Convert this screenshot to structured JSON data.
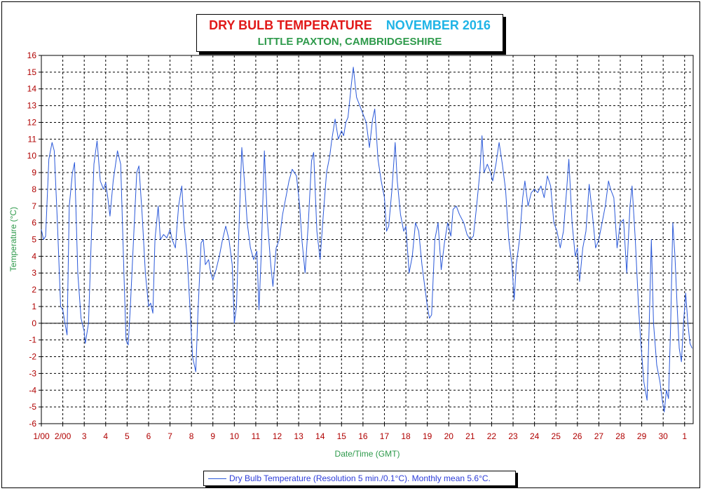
{
  "title": {
    "main": "DRY BULB TEMPERATURE",
    "month": "NOVEMBER 2016",
    "location": "LITTLE PAXTON, CAMBRIDGESHIRE"
  },
  "colors": {
    "title_main": "#e11919",
    "title_month": "#1fb4e6",
    "subtitle": "#2e9a4b",
    "series": "#2b59d9",
    "tick_labels": "#b00000",
    "axis_labels": "#2e9a4b"
  },
  "legend": {
    "text": "Dry Bulb Temperature (Resolution 5 min./0.1°C). Monthly mean 5.6°C."
  },
  "chart_data": {
    "type": "line",
    "title": "DRY BULB TEMPERATURE NOVEMBER 2016",
    "subtitle": "LITTLE PAXTON, CAMBRIDGESHIRE",
    "xlabel": "Date/Time (GMT)",
    "ylabel": "Temperature (°C)",
    "ylim": [
      -6,
      16
    ],
    "xlim": [
      1,
      31.4
    ],
    "grid": true,
    "legend_position": "bottom",
    "y_ticks": [
      "-6",
      "-5",
      "-4",
      "-3",
      "-2",
      "-1",
      "0",
      "1",
      "2",
      "3",
      "4",
      "5",
      "6",
      "7",
      "8",
      "9",
      "10",
      "11",
      "12",
      "13",
      "14",
      "15",
      "16"
    ],
    "x_ticks": [
      {
        "x": 1,
        "label": "1/00"
      },
      {
        "x": 2,
        "label": "2/00"
      },
      {
        "x": 3,
        "label": "3"
      },
      {
        "x": 4,
        "label": "4"
      },
      {
        "x": 5,
        "label": "5"
      },
      {
        "x": 6,
        "label": "6"
      },
      {
        "x": 7,
        "label": "7"
      },
      {
        "x": 8,
        "label": "8"
      },
      {
        "x": 9,
        "label": "9"
      },
      {
        "x": 10,
        "label": "10"
      },
      {
        "x": 11,
        "label": "11"
      },
      {
        "x": 12,
        "label": "12"
      },
      {
        "x": 13,
        "label": "13"
      },
      {
        "x": 14,
        "label": "14"
      },
      {
        "x": 15,
        "label": "15"
      },
      {
        "x": 16,
        "label": "16"
      },
      {
        "x": 17,
        "label": "17"
      },
      {
        "x": 18,
        "label": "18"
      },
      {
        "x": 19,
        "label": "19"
      },
      {
        "x": 20,
        "label": "20"
      },
      {
        "x": 21,
        "label": "21"
      },
      {
        "x": 22,
        "label": "22"
      },
      {
        "x": 23,
        "label": "23"
      },
      {
        "x": 24,
        "label": "24"
      },
      {
        "x": 25,
        "label": "25"
      },
      {
        "x": 26,
        "label": "26"
      },
      {
        "x": 27,
        "label": "27"
      },
      {
        "x": 28,
        "label": "28"
      },
      {
        "x": 29,
        "label": "29"
      },
      {
        "x": 30,
        "label": "30"
      },
      {
        "x": 31,
        "label": "1"
      }
    ],
    "series": [
      {
        "name": "Dry Bulb Temperature (Resolution 5 min./0.1°C). Monthly mean 5.6°C.",
        "points": [
          [
            1.0,
            5.6
          ],
          [
            1.1,
            5.0
          ],
          [
            1.2,
            5.2
          ],
          [
            1.35,
            9.8
          ],
          [
            1.5,
            10.8
          ],
          [
            1.6,
            10.3
          ],
          [
            1.75,
            6.0
          ],
          [
            1.9,
            1.0
          ],
          [
            2.0,
            0.8
          ],
          [
            2.1,
            0.0
          ],
          [
            2.2,
            -0.7
          ],
          [
            2.3,
            7.0
          ],
          [
            2.45,
            9.0
          ],
          [
            2.55,
            9.6
          ],
          [
            2.7,
            3.0
          ],
          [
            2.85,
            0.3
          ],
          [
            3.0,
            -0.5
          ],
          [
            3.05,
            -1.2
          ],
          [
            3.2,
            0.0
          ],
          [
            3.3,
            4.0
          ],
          [
            3.45,
            9.5
          ],
          [
            3.6,
            10.9
          ],
          [
            3.75,
            8.5
          ],
          [
            3.9,
            8.0
          ],
          [
            4.0,
            8.4
          ],
          [
            4.1,
            7.5
          ],
          [
            4.2,
            6.4
          ],
          [
            4.35,
            8.5
          ],
          [
            4.55,
            10.3
          ],
          [
            4.7,
            9.5
          ],
          [
            4.85,
            3.0
          ],
          [
            4.95,
            -1.0
          ],
          [
            5.05,
            -1.3
          ],
          [
            5.15,
            1.0
          ],
          [
            5.3,
            5.0
          ],
          [
            5.45,
            9.0
          ],
          [
            5.55,
            9.4
          ],
          [
            5.7,
            6.5
          ],
          [
            5.85,
            3.0
          ],
          [
            6.0,
            1.0
          ],
          [
            6.1,
            1.2
          ],
          [
            6.2,
            0.6
          ],
          [
            6.3,
            5.0
          ],
          [
            6.45,
            7.0
          ],
          [
            6.55,
            5.0
          ],
          [
            6.7,
            5.3
          ],
          [
            6.85,
            5.1
          ],
          [
            7.0,
            5.6
          ],
          [
            7.1,
            5.0
          ],
          [
            7.25,
            4.5
          ],
          [
            7.4,
            7.0
          ],
          [
            7.55,
            8.2
          ],
          [
            7.65,
            6.0
          ],
          [
            7.8,
            4.0
          ],
          [
            7.95,
            0.5
          ],
          [
            8.05,
            -2.0
          ],
          [
            8.2,
            -2.9
          ],
          [
            8.3,
            0.5
          ],
          [
            8.45,
            4.8
          ],
          [
            8.55,
            5.0
          ],
          [
            8.65,
            3.5
          ],
          [
            8.8,
            3.8
          ],
          [
            8.9,
            3.0
          ],
          [
            9.0,
            2.6
          ],
          [
            9.15,
            3.2
          ],
          [
            9.3,
            4.0
          ],
          [
            9.45,
            5.0
          ],
          [
            9.6,
            5.8
          ],
          [
            9.75,
            5.0
          ],
          [
            9.9,
            3.5
          ],
          [
            10.0,
            0.0
          ],
          [
            10.1,
            1.0
          ],
          [
            10.25,
            7.0
          ],
          [
            10.35,
            10.5
          ],
          [
            10.5,
            8.0
          ],
          [
            10.6,
            6.0
          ],
          [
            10.75,
            4.5
          ],
          [
            10.9,
            3.8
          ],
          [
            11.05,
            4.3
          ],
          [
            11.15,
            0.8
          ],
          [
            11.25,
            4.0
          ],
          [
            11.4,
            10.3
          ],
          [
            11.55,
            6.0
          ],
          [
            11.7,
            3.5
          ],
          [
            11.8,
            2.2
          ],
          [
            11.95,
            4.5
          ],
          [
            12.1,
            5.0
          ],
          [
            12.25,
            6.5
          ],
          [
            12.4,
            7.5
          ],
          [
            12.55,
            8.5
          ],
          [
            12.7,
            9.2
          ],
          [
            12.9,
            8.8
          ],
          [
            13.05,
            7.0
          ],
          [
            13.15,
            5.0
          ],
          [
            13.3,
            3.0
          ],
          [
            13.45,
            6.0
          ],
          [
            13.6,
            9.7
          ],
          [
            13.7,
            10.2
          ],
          [
            13.85,
            5.5
          ],
          [
            14.0,
            3.8
          ],
          [
            14.15,
            6.5
          ],
          [
            14.3,
            9.0
          ],
          [
            14.45,
            10.0
          ],
          [
            14.55,
            11.0
          ],
          [
            14.7,
            12.2
          ],
          [
            14.85,
            11.0
          ],
          [
            15.0,
            11.5
          ],
          [
            15.1,
            11.2
          ],
          [
            15.2,
            12.0
          ],
          [
            15.3,
            12.3
          ],
          [
            15.45,
            14.2
          ],
          [
            15.55,
            15.3
          ],
          [
            15.7,
            13.5
          ],
          [
            15.85,
            13.0
          ],
          [
            16.0,
            12.5
          ],
          [
            16.15,
            12.0
          ],
          [
            16.3,
            10.5
          ],
          [
            16.45,
            12.2
          ],
          [
            16.55,
            12.8
          ],
          [
            16.7,
            9.8
          ],
          [
            16.85,
            8.5
          ],
          [
            17.0,
            7.5
          ],
          [
            17.1,
            5.5
          ],
          [
            17.2,
            5.8
          ],
          [
            17.35,
            8.0
          ],
          [
            17.5,
            10.8
          ],
          [
            17.6,
            8.5
          ],
          [
            17.75,
            6.5
          ],
          [
            17.9,
            5.5
          ],
          [
            18.0,
            5.8
          ],
          [
            18.15,
            3.0
          ],
          [
            18.3,
            4.0
          ],
          [
            18.45,
            6.0
          ],
          [
            18.6,
            5.5
          ],
          [
            18.75,
            3.5
          ],
          [
            18.9,
            2.0
          ],
          [
            19.0,
            1.0
          ],
          [
            19.1,
            0.3
          ],
          [
            19.2,
            0.5
          ],
          [
            19.35,
            5.0
          ],
          [
            19.5,
            6.0
          ],
          [
            19.65,
            3.2
          ],
          [
            19.8,
            4.8
          ],
          [
            19.95,
            6.0
          ],
          [
            20.1,
            5.2
          ],
          [
            20.2,
            6.8
          ],
          [
            20.35,
            7.0
          ],
          [
            20.5,
            6.5
          ],
          [
            20.7,
            6.0
          ],
          [
            20.85,
            5.3
          ],
          [
            21.0,
            5.0
          ],
          [
            21.15,
            5.2
          ],
          [
            21.3,
            7.0
          ],
          [
            21.45,
            9.0
          ],
          [
            21.55,
            11.2
          ],
          [
            21.65,
            9.0
          ],
          [
            21.8,
            9.5
          ],
          [
            21.95,
            9.0
          ],
          [
            22.05,
            8.5
          ],
          [
            22.2,
            9.5
          ],
          [
            22.35,
            10.8
          ],
          [
            22.5,
            9.5
          ],
          [
            22.65,
            8.0
          ],
          [
            22.8,
            5.0
          ],
          [
            22.95,
            3.5
          ],
          [
            23.05,
            1.4
          ],
          [
            23.15,
            3.5
          ],
          [
            23.3,
            5.0
          ],
          [
            23.45,
            7.5
          ],
          [
            23.55,
            8.5
          ],
          [
            23.7,
            7.0
          ],
          [
            23.85,
            7.8
          ],
          [
            24.0,
            8.0
          ],
          [
            24.15,
            7.8
          ],
          [
            24.3,
            8.2
          ],
          [
            24.45,
            7.5
          ],
          [
            24.6,
            8.8
          ],
          [
            24.75,
            8.2
          ],
          [
            24.9,
            6.0
          ],
          [
            25.05,
            5.5
          ],
          [
            25.2,
            4.5
          ],
          [
            25.35,
            5.5
          ],
          [
            25.5,
            8.0
          ],
          [
            25.6,
            9.8
          ],
          [
            25.75,
            6.0
          ],
          [
            25.9,
            4.0
          ],
          [
            26.0,
            4.5
          ],
          [
            26.1,
            2.5
          ],
          [
            26.25,
            4.5
          ],
          [
            26.4,
            5.5
          ],
          [
            26.55,
            8.3
          ],
          [
            26.7,
            6.5
          ],
          [
            26.85,
            4.5
          ],
          [
            27.0,
            5.0
          ],
          [
            27.15,
            6.0
          ],
          [
            27.3,
            7.0
          ],
          [
            27.45,
            8.5
          ],
          [
            27.55,
            8.0
          ],
          [
            27.7,
            7.5
          ],
          [
            27.85,
            4.5
          ],
          [
            28.0,
            6.0
          ],
          [
            28.15,
            6.2
          ],
          [
            28.3,
            3.0
          ],
          [
            28.45,
            7.0
          ],
          [
            28.55,
            8.2
          ],
          [
            28.7,
            5.0
          ],
          [
            28.85,
            1.0
          ],
          [
            28.95,
            -1.0
          ],
          [
            29.1,
            -3.5
          ],
          [
            29.25,
            -4.6
          ],
          [
            29.35,
            0.0
          ],
          [
            29.45,
            5.0
          ],
          [
            29.55,
            0.0
          ],
          [
            29.7,
            -2.5
          ],
          [
            29.85,
            -3.5
          ],
          [
            29.95,
            -4.5
          ],
          [
            30.05,
            -5.3
          ],
          [
            30.15,
            -4.0
          ],
          [
            30.25,
            -4.5
          ],
          [
            30.35,
            0.0
          ],
          [
            30.45,
            6.0
          ],
          [
            30.55,
            4.0
          ],
          [
            30.65,
            1.0
          ],
          [
            30.75,
            -1.5
          ],
          [
            30.85,
            -2.3
          ],
          [
            30.95,
            0.0
          ],
          [
            31.05,
            1.8
          ],
          [
            31.15,
            0.0
          ],
          [
            31.25,
            -1.2
          ],
          [
            31.35,
            -1.5
          ]
        ]
      }
    ]
  }
}
